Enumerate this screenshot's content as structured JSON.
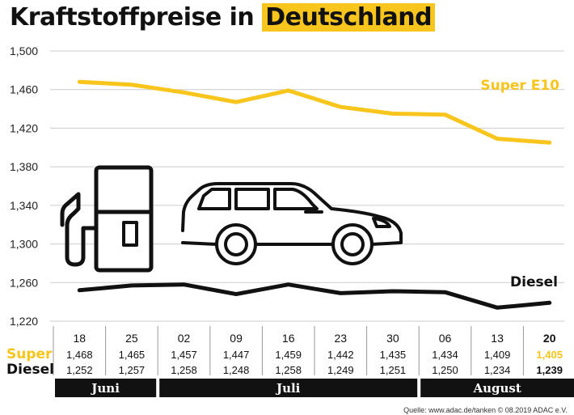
{
  "title": {
    "part1": "Kraftstoffpreise in",
    "part2": "Deutschland"
  },
  "source": "Quelle: www.adac.de/tanken  © 08.2019  ADAC e.V.",
  "colors": {
    "super": "#f7c51b",
    "diesel": "#111111",
    "highlight": "#f7c51b",
    "grid": "#cccccc"
  },
  "icons": [
    "fuel-pump-icon",
    "car-icon"
  ],
  "chart_data": {
    "type": "line",
    "categories": [
      "18",
      "25",
      "02",
      "09",
      "16",
      "23",
      "30",
      "06",
      "13",
      "20"
    ],
    "ylim": [
      1.22,
      1.5
    ],
    "yticks": [
      1.22,
      1.26,
      1.3,
      1.34,
      1.38,
      1.42,
      1.46,
      1.5
    ],
    "ytick_labels": [
      "1,220",
      "1,260",
      "1,300",
      "1,340",
      "1,380",
      "1,420",
      "1,460",
      "1,500"
    ],
    "grid": true,
    "series": [
      {
        "name": "Super E10",
        "row_label": "Super",
        "values": [
          1.468,
          1.465,
          1.457,
          1.447,
          1.459,
          1.442,
          1.435,
          1.434,
          1.409,
          1.405
        ],
        "value_labels": [
          "1,468",
          "1,465",
          "1,457",
          "1,447",
          "1,459",
          "1,442",
          "1,435",
          "1,434",
          "1,409",
          "1,405"
        ]
      },
      {
        "name": "Diesel",
        "row_label": "Diesel",
        "values": [
          1.252,
          1.257,
          1.258,
          1.248,
          1.258,
          1.249,
          1.251,
          1.25,
          1.234,
          1.239
        ],
        "value_labels": [
          "1,252",
          "1,257",
          "1,258",
          "1,248",
          "1,258",
          "1,249",
          "1,251",
          "1,250",
          "1,234",
          "1,239"
        ]
      }
    ],
    "months": [
      {
        "label": "Juni",
        "from": 0,
        "to": 1
      },
      {
        "label": "Juli",
        "from": 2,
        "to": 6
      },
      {
        "label": "August",
        "from": 7,
        "to": 9
      }
    ],
    "highlight_index": 9
  }
}
